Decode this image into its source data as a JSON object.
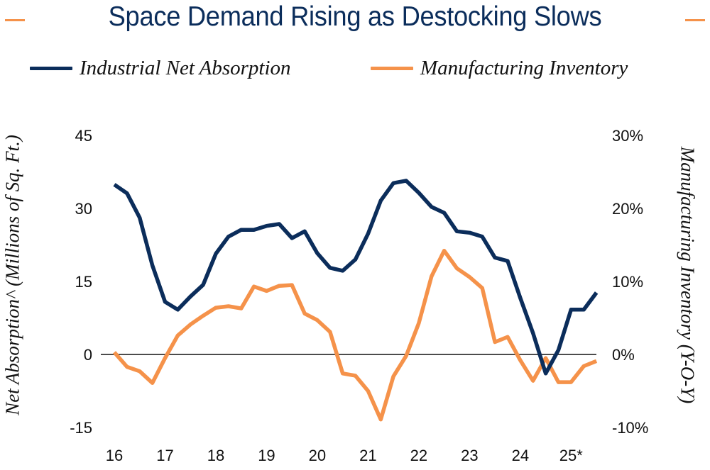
{
  "chart_data": {
    "type": "line",
    "title": "Space Demand Rising as Destocking Slows",
    "legend_position": "top",
    "x_tick_labels": [
      "16",
      "17",
      "18",
      "19",
      "20",
      "21",
      "22",
      "23",
      "24",
      "25*"
    ],
    "x_frequency": "quarterly",
    "x_start": "2016 Q1",
    "left_axis": {
      "label": "Net Absorption^ (Millions of Sq. Ft.)",
      "ylim": [
        -15,
        45
      ],
      "ticks": [
        45,
        30,
        15,
        0,
        -15
      ],
      "tick_labels": [
        "45",
        "30",
        "15",
        "0",
        "-15"
      ]
    },
    "right_axis": {
      "label": "Manufacturing Inventory (Y-O-Y)",
      "ylim": [
        -10,
        30
      ],
      "ticks": [
        30,
        20,
        10,
        0,
        -10
      ],
      "tick_labels": [
        "30%",
        "20%",
        "10%",
        "0%",
        "-10%"
      ]
    },
    "zero_line": true,
    "grid": false,
    "series": [
      {
        "name": "Industrial Net Absorption",
        "axis": "left",
        "color": "#0b2d5b",
        "values": [
          34.9,
          33.1,
          28.1,
          18.3,
          10.8,
          9.2,
          11.9,
          14.3,
          20.7,
          24.2,
          25.6,
          25.6,
          26.4,
          26.8,
          23.9,
          25.3,
          20.8,
          17.8,
          17.2,
          19.5,
          24.8,
          31.6,
          35.2,
          35.7,
          33.2,
          30.3,
          29.1,
          25.3,
          25.0,
          24.2,
          19.9,
          19.2,
          11.6,
          4.4,
          -3.9,
          0.9,
          9.2,
          9.2,
          12.7
        ]
      },
      {
        "name": "Manufacturing Inventory",
        "axis": "right",
        "color": "#f5924a",
        "values": [
          0.3,
          -1.7,
          -2.3,
          -3.9,
          -0.5,
          2.6,
          4.1,
          5.3,
          6.4,
          6.6,
          6.3,
          9.3,
          8.7,
          9.4,
          9.5,
          5.6,
          4.7,
          3.1,
          -2.6,
          -2.9,
          -5.0,
          -8.9,
          -3.0,
          -0.2,
          4.3,
          10.7,
          14.2,
          11.8,
          10.6,
          9.1,
          1.7,
          2.4,
          -0.8,
          -3.6,
          -0.5,
          -3.8,
          -3.8,
          -1.6,
          -0.9
        ]
      }
    ]
  },
  "colors": {
    "title": "#0b2d5b",
    "accent": "#f5924a",
    "navy": "#0b2d5b"
  }
}
